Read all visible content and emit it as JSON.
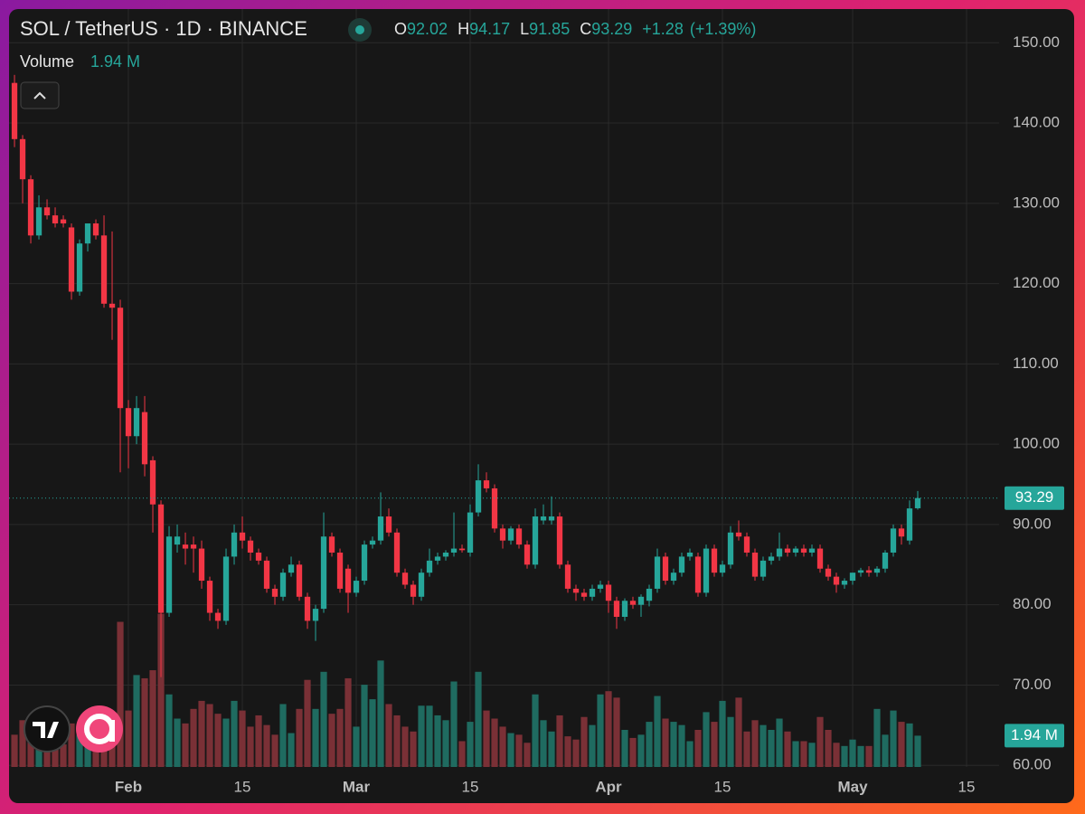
{
  "chart_data": {
    "type": "candlestick",
    "title": "SOL / TetherUS · 1D · BINANCE",
    "legend": {
      "o": "O",
      "h": "H",
      "l": "L",
      "c": "C",
      "change": "+1.28",
      "change_pct": "(+1.39%)",
      "volume_title": "Volume",
      "volume_last_label": "1.94 M"
    },
    "up_color": "#26a69a",
    "down_color": "#f23645",
    "up_volume_color": "#1f6b60",
    "down_volume_color": "#7a3036",
    "open": [
      145,
      138,
      133,
      126,
      129.5,
      128.5,
      128,
      127,
      119,
      125,
      127.5,
      126,
      117.5,
      117,
      104.5,
      101,
      104,
      98,
      92.5,
      79,
      87.5,
      87.5,
      87.5,
      87,
      83,
      79,
      78,
      86,
      89,
      88,
      86.5,
      85.5,
      82,
      81,
      84,
      85,
      81,
      78,
      79.5,
      88.5,
      86.5,
      84.5,
      81.5,
      83,
      87.5,
      88,
      91,
      89,
      84,
      82.5,
      81,
      84,
      85.5,
      86,
      86.5,
      87,
      86.5,
      91.5,
      95.5,
      94.5,
      89.5,
      88,
      89.5,
      87.5,
      85,
      90.5,
      90.5,
      91,
      85,
      82,
      81.5,
      81,
      82,
      82.5,
      80.5,
      78.5,
      80.5,
      80,
      80.5,
      82,
      86,
      83,
      84,
      86,
      86,
      81.5,
      87,
      84,
      85,
      89,
      88.5,
      86.5,
      83.5,
      85.5,
      86,
      87,
      86.5,
      87,
      86.5,
      87,
      84.5,
      83.5,
      82.5,
      83,
      84,
      84.3,
      84,
      84.5,
      86.5,
      89.5,
      88,
      92.02
    ],
    "high": [
      146,
      138.5,
      133.5,
      131,
      130.5,
      129.5,
      128.5,
      127.5,
      125.5,
      127.5,
      128,
      128.5,
      126.5,
      118,
      105.5,
      106,
      106,
      98.5,
      93,
      89.8,
      90,
      89,
      88.5,
      88,
      83.5,
      79.5,
      87,
      90,
      91,
      88.5,
      87,
      86,
      82.5,
      84.5,
      86,
      85.5,
      81.5,
      80,
      91.5,
      89,
      87,
      85,
      83.5,
      88,
      88.5,
      94,
      92,
      89.5,
      84.5,
      83,
      84.5,
      87,
      86.5,
      86.8,
      91.5,
      87.5,
      92.5,
      97.5,
      96.5,
      95,
      90,
      89.8,
      90,
      88,
      92,
      92.5,
      93.5,
      91.5,
      85.5,
      82.5,
      82,
      82.5,
      83,
      83,
      81,
      80.8,
      81,
      81.3,
      82.5,
      87,
      86.5,
      84.5,
      86.5,
      87,
      86.5,
      87.5,
      87.5,
      85.5,
      89.8,
      90.5,
      89,
      87,
      86,
      86.5,
      89,
      87.5,
      87.3,
      87.5,
      87.5,
      87.5,
      85,
      84,
      83.3,
      84,
      84.6,
      84.8,
      84.8,
      86.8,
      90,
      90,
      93,
      94.17
    ],
    "low": [
      137,
      130,
      125,
      125.5,
      128,
      127,
      127,
      118,
      118.5,
      124,
      125.5,
      117,
      113,
      96.5,
      97,
      100,
      96,
      89,
      71,
      78.5,
      86.5,
      85,
      84,
      82,
      78,
      77,
      77.5,
      85,
      87,
      85.5,
      85,
      81.5,
      80,
      80.5,
      83.5,
      80.5,
      77,
      75.5,
      79,
      86,
      81.5,
      79,
      81,
      82.5,
      87,
      87.5,
      88.5,
      83.5,
      82,
      80,
      80.5,
      83.5,
      85,
      85.5,
      86,
      86.5,
      86,
      91,
      94,
      89,
      87,
      87.5,
      87,
      84.5,
      84.5,
      90,
      90,
      84.5,
      81.5,
      80.5,
      80.5,
      80.5,
      81.5,
      79,
      77,
      78,
      79.5,
      78.5,
      79.8,
      81.5,
      82.5,
      82.5,
      83.5,
      85.5,
      81,
      81,
      83.5,
      83.5,
      84.5,
      88,
      86,
      83,
      83,
      85,
      85.5,
      86,
      86,
      86,
      86,
      84,
      83,
      81.5,
      82,
      82.5,
      83.5,
      83.5,
      83.5,
      84,
      86,
      87.5,
      87.5,
      91.85
    ],
    "close": [
      138,
      133,
      126,
      129.5,
      128.5,
      127.5,
      127.5,
      119,
      125,
      127.5,
      126,
      117.5,
      117,
      104.5,
      101,
      104.5,
      97.5,
      92.5,
      79,
      88.5,
      88.5,
      87,
      87,
      83,
      79,
      78,
      86,
      89,
      88,
      86.5,
      85.5,
      82,
      81,
      84,
      85,
      81,
      78,
      79.5,
      88.5,
      86.5,
      82,
      81.5,
      83,
      87.5,
      88,
      91,
      89,
      84,
      82.5,
      81,
      84,
      85.5,
      86,
      86.5,
      87,
      86.8,
      91.5,
      95.5,
      94.5,
      89.5,
      88,
      89.5,
      87.5,
      85,
      91,
      91,
      91,
      85,
      82,
      81.5,
      81,
      82,
      82.5,
      80.5,
      78.5,
      80.5,
      80,
      81,
      82,
      86,
      83,
      84,
      86,
      86.5,
      81.5,
      87,
      84,
      85,
      89,
      88.5,
      86.5,
      83.5,
      85.5,
      86,
      87,
      86.5,
      87,
      86.5,
      87,
      84.5,
      83.5,
      82.5,
      83,
      84,
      84.3,
      84,
      84.5,
      86.5,
      89.5,
      88.5,
      92,
      93.29
    ],
    "volume": [
      2.0,
      2.9,
      2.0,
      1.7,
      1.8,
      1.3,
      1.4,
      2.7,
      2.0,
      1.8,
      1.8,
      2.3,
      3.0,
      9.0,
      3.5,
      5.7,
      5.5,
      6.0,
      9.5,
      4.5,
      3.0,
      2.7,
      3.6,
      4.1,
      3.9,
      3.3,
      3.0,
      4.1,
      3.5,
      2.5,
      3.2,
      2.6,
      2.0,
      3.9,
      2.1,
      3.6,
      5.4,
      3.6,
      5.9,
      3.3,
      3.6,
      5.5,
      2.5,
      5.1,
      4.2,
      6.6,
      3.9,
      3.2,
      2.5,
      2.2,
      3.8,
      3.8,
      3.2,
      2.9,
      5.3,
      1.6,
      2.8,
      5.9,
      3.5,
      3.0,
      2.5,
      2.1,
      2.0,
      1.5,
      4.5,
      2.9,
      2.2,
      3.2,
      1.9,
      1.7,
      3.1,
      2.6,
      4.5,
      4.7,
      4.3,
      2.3,
      1.8,
      2.0,
      2.8,
      4.4,
      3.0,
      2.8,
      2.6,
      1.6,
      2.3,
      3.4,
      2.8,
      4.1,
      3.1,
      4.3,
      2.2,
      2.9,
      2.6,
      2.3,
      3.0,
      2.2,
      1.6,
      1.6,
      1.5,
      3.1,
      2.3,
      1.5,
      1.3,
      1.7,
      1.3,
      1.3,
      3.6,
      2.0,
      3.5,
      2.8,
      2.7,
      1.94
    ],
    "xlim": [
      -0.67,
      121
    ],
    "xticks": [
      {
        "value": 14,
        "label": "Feb"
      },
      {
        "value": 28,
        "label": "15"
      },
      {
        "value": 42,
        "label": "Mar"
      },
      {
        "value": 56,
        "label": "15"
      },
      {
        "value": 73,
        "label": "Apr"
      },
      {
        "value": 87,
        "label": "15"
      },
      {
        "value": 103,
        "label": "May"
      },
      {
        "value": 117,
        "label": "15"
      }
    ],
    "ylim": [
      59.8,
      154.2
    ],
    "yticks": [
      {
        "value": 60,
        "label": "60.00"
      },
      {
        "value": 70,
        "label": "70.00"
      },
      {
        "value": 80,
        "label": "80.00"
      },
      {
        "value": 90,
        "label": "90.00"
      },
      {
        "value": 100,
        "label": "100.00"
      },
      {
        "value": 110,
        "label": "110.00"
      },
      {
        "value": 120,
        "label": "120.00"
      },
      {
        "value": 130,
        "label": "130.00"
      },
      {
        "value": 140,
        "label": "140.00"
      },
      {
        "value": 150,
        "label": "150.00"
      }
    ],
    "vlim": [
      0,
      47
    ],
    "grid": true
  }
}
